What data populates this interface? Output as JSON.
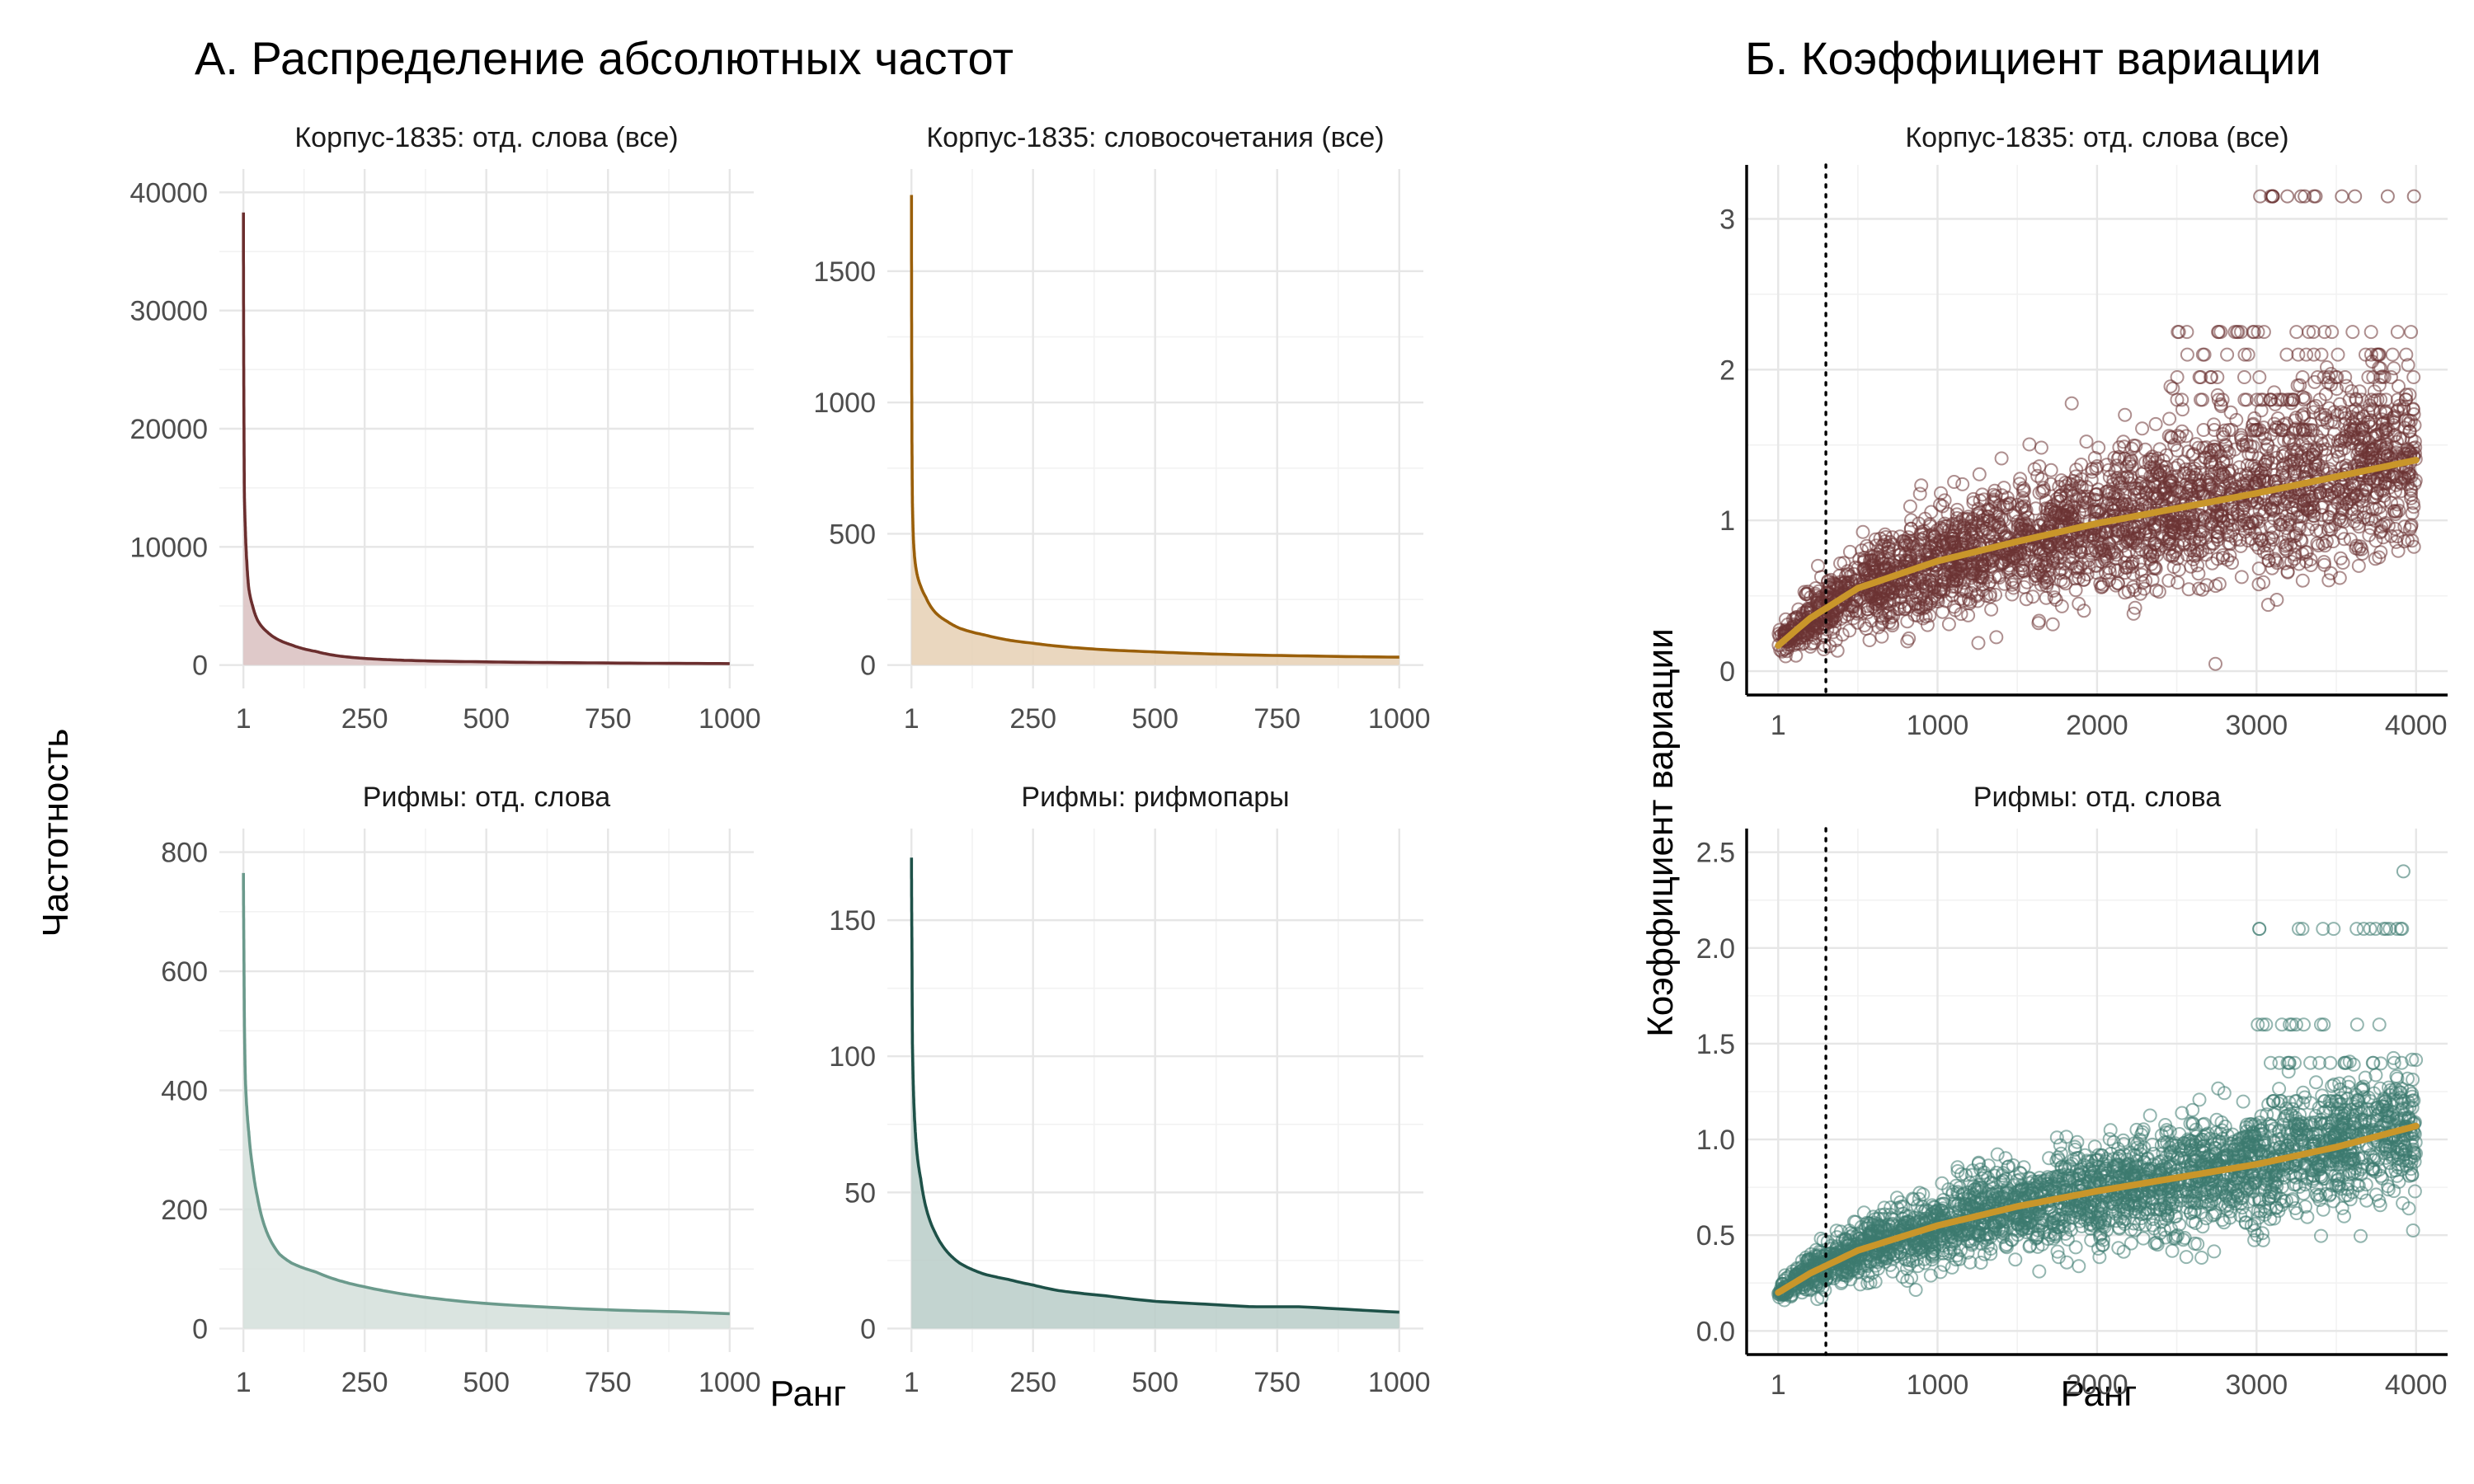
{
  "section_titles": {
    "a": "А. Распределение абсолютных частот",
    "b": "Б. Коэффициент вариации"
  },
  "axis_titles": {
    "a_y": "Частотность",
    "a_x": "Ранг",
    "b_y": "Коэффициент вариации",
    "b_x": "Ранг"
  },
  "chart_data": [
    {
      "type": "area",
      "title": "Корпус-1835: отд. слова (все)",
      "xlim": [
        1,
        1000
      ],
      "ylim": [
        0,
        40000
      ],
      "x_ticks": [
        1,
        250,
        500,
        750,
        1000
      ],
      "x_tick_labels": [
        "1",
        "250",
        "500",
        "750",
        "1000"
      ],
      "y_ticks": [
        0,
        10000,
        20000,
        30000,
        40000
      ],
      "y_tick_labels": [
        "0",
        "10000",
        "20000",
        "30000",
        "40000"
      ],
      "color": "#6b2e2e",
      "fill": "#d9bfbf",
      "x": [
        1,
        2,
        3,
        5,
        8,
        12,
        20,
        30,
        50,
        75,
        100,
        150,
        200,
        250,
        300,
        400,
        500,
        600,
        700,
        800,
        900,
        1000
      ],
      "y": [
        38300,
        22000,
        14500,
        11500,
        8700,
        6500,
        5000,
        3800,
        2800,
        2100,
        1700,
        1150,
        750,
        560,
        450,
        330,
        270,
        220,
        190,
        160,
        140,
        125
      ]
    },
    {
      "type": "area",
      "title": "Корпус-1835: словосочетания (все)",
      "xlim": [
        1,
        1000
      ],
      "ylim": [
        0,
        1800
      ],
      "x_ticks": [
        1,
        250,
        500,
        750,
        1000
      ],
      "x_tick_labels": [
        "1",
        "250",
        "500",
        "750",
        "1000"
      ],
      "y_ticks": [
        0,
        500,
        1000,
        1500
      ],
      "y_tick_labels": [
        "0",
        "500",
        "1000",
        "1500"
      ],
      "color": "#9a5f0a",
      "fill": "#e6d0b4",
      "x": [
        1,
        2,
        3,
        5,
        8,
        12,
        20,
        30,
        50,
        75,
        100,
        150,
        200,
        250,
        300,
        400,
        500,
        600,
        700,
        800,
        900,
        1000
      ],
      "y": [
        1790,
        850,
        620,
        480,
        400,
        350,
        300,
        260,
        200,
        165,
        140,
        115,
        95,
        83,
        72,
        58,
        50,
        43,
        38,
        35,
        32,
        30
      ]
    },
    {
      "type": "area",
      "title": "Рифмы: отд. слова",
      "xlim": [
        1,
        1000
      ],
      "ylim": [
        0,
        800
      ],
      "x_ticks": [
        1,
        250,
        500,
        750,
        1000
      ],
      "x_tick_labels": [
        "1",
        "250",
        "500",
        "750",
        "1000"
      ],
      "y_ticks": [
        0,
        200,
        400,
        600,
        800
      ],
      "y_tick_labels": [
        "0",
        "200",
        "400",
        "600",
        "800"
      ],
      "color": "#6b9a8c",
      "fill": "#d3dfdb",
      "x": [
        1,
        2,
        3,
        5,
        8,
        12,
        20,
        30,
        50,
        75,
        100,
        150,
        200,
        250,
        300,
        400,
        500,
        600,
        700,
        800,
        900,
        1000
      ],
      "y": [
        765,
        640,
        520,
        420,
        370,
        330,
        270,
        220,
        160,
        125,
        110,
        95,
        80,
        70,
        62,
        50,
        42,
        37,
        33,
        30,
        28,
        25
      ]
    },
    {
      "type": "area",
      "title": "Рифмы: рифмопары",
      "xlim": [
        1,
        1000
      ],
      "ylim": [
        0,
        175
      ],
      "x_ticks": [
        1,
        250,
        500,
        750,
        1000
      ],
      "x_tick_labels": [
        "1",
        "250",
        "500",
        "750",
        "1000"
      ],
      "y_ticks": [
        0,
        50,
        100,
        150
      ],
      "y_tick_labels": [
        "0",
        "50",
        "100",
        "150"
      ],
      "color": "#1e5148",
      "fill": "#b8ccc8",
      "x": [
        1,
        2,
        3,
        5,
        8,
        12,
        20,
        30,
        50,
        75,
        100,
        150,
        200,
        250,
        300,
        400,
        500,
        600,
        700,
        800,
        900,
        1000
      ],
      "y": [
        173,
        140,
        105,
        88,
        75,
        65,
        55,
        45,
        35,
        28,
        24,
        20,
        18,
        16,
        14,
        12,
        10,
        9,
        8,
        8,
        7,
        6
      ]
    },
    {
      "type": "scatter",
      "title": "Корпус-1835: отд. слова (все)",
      "xlim": [
        1,
        4000
      ],
      "ylim": [
        0,
        3.2
      ],
      "x_ticks": [
        1,
        1000,
        2000,
        3000,
        4000
      ],
      "x_tick_labels": [
        "1",
        "1000",
        "2000",
        "3000",
        "4000"
      ],
      "y_ticks": [
        0,
        1,
        2,
        3
      ],
      "y_tick_labels": [
        "0",
        "1",
        "2",
        "3"
      ],
      "color": "#6b3333",
      "trend_color": "#c9962a",
      "reference_line_x": 300,
      "trend_x": [
        1,
        200,
        500,
        1000,
        1500,
        2000,
        2500,
        3000,
        3500,
        4000
      ],
      "trend_y": [
        0.17,
        0.35,
        0.55,
        0.73,
        0.86,
        0.98,
        1.08,
        1.18,
        1.29,
        1.4
      ],
      "spread_y": [
        0.06,
        0.15,
        0.25,
        0.32,
        0.37,
        0.42,
        0.46,
        0.5,
        0.5,
        0.5
      ],
      "n_points": 3000,
      "ceiling_y": [
        2.25,
        2.1,
        1.95,
        1.8,
        1.6
      ],
      "ceiling_from_x": 2500,
      "max_y": 3.15,
      "max_from_x": 3000,
      "max_count": 14
    },
    {
      "type": "scatter",
      "title": "Рифмы: отд. слова",
      "xlim": [
        1,
        4000
      ],
      "ylim": [
        0,
        2.5
      ],
      "x_ticks": [
        1,
        1000,
        2000,
        3000,
        4000
      ],
      "x_tick_labels": [
        "1",
        "1000",
        "2000",
        "3000",
        "4000"
      ],
      "y_ticks": [
        0,
        0.5,
        1,
        1.5,
        2,
        2.5
      ],
      "y_tick_labels": [
        "0.0",
        "0.5",
        "1.0",
        "1.5",
        "2.0",
        "2.5"
      ],
      "color": "#3c7a70",
      "trend_color": "#c9962a",
      "reference_line_x": 300,
      "trend_x": [
        1,
        200,
        500,
        1000,
        1500,
        2000,
        2500,
        3000,
        3500,
        4000
      ],
      "trend_y": [
        0.2,
        0.3,
        0.42,
        0.55,
        0.65,
        0.73,
        0.8,
        0.87,
        0.96,
        1.07
      ],
      "spread_y": [
        0.05,
        0.09,
        0.13,
        0.17,
        0.2,
        0.23,
        0.25,
        0.27,
        0.28,
        0.28
      ],
      "n_points": 3000,
      "ceiling_y": [
        1.6,
        1.4,
        1.2,
        2.1
      ],
      "ceiling_from_x": 3000,
      "max_y": 2.4,
      "max_from_x": 3900,
      "max_count": 1
    }
  ]
}
